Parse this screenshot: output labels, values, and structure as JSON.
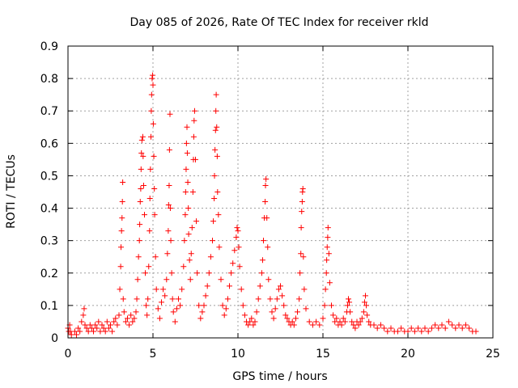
{
  "chart_data": {
    "type": "scatter",
    "title": "Day 085 of 2026, Rate Of TEC Index for receiver rkld",
    "xlabel": "GPS time / hours",
    "ylabel": "ROTI / TECUs",
    "xlim": [
      0,
      25
    ],
    "ylim": [
      0,
      0.9
    ],
    "xticks": [
      "0",
      "5",
      "10",
      "15",
      "20",
      "25"
    ],
    "yticks": [
      "0",
      "0.1",
      "0.2",
      "0.3",
      "0.4",
      "0.5",
      "0.6",
      "0.7",
      "0.8",
      "0.9"
    ],
    "grid": true,
    "marker": "plus",
    "color": "#ff0000",
    "series": [
      {
        "values": [
          [
            0.0,
            0.03
          ],
          [
            0.05,
            0.02
          ],
          [
            0.1,
            0.04
          ],
          [
            0.15,
            0.02
          ],
          [
            0.2,
            0.01
          ],
          [
            0.4,
            0.02
          ],
          [
            0.5,
            0.01
          ],
          [
            0.6,
            0.03
          ],
          [
            0.7,
            0.02
          ],
          [
            0.8,
            0.05
          ],
          [
            0.9,
            0.07
          ],
          [
            0.95,
            0.09
          ],
          [
            1.0,
            0.04
          ],
          [
            1.1,
            0.03
          ],
          [
            1.2,
            0.02
          ],
          [
            1.3,
            0.04
          ],
          [
            1.4,
            0.03
          ],
          [
            1.5,
            0.02
          ],
          [
            1.6,
            0.04
          ],
          [
            1.7,
            0.03
          ],
          [
            1.8,
            0.05
          ],
          [
            1.9,
            0.02
          ],
          [
            2.0,
            0.04
          ],
          [
            2.1,
            0.03
          ],
          [
            2.2,
            0.02
          ],
          [
            2.3,
            0.05
          ],
          [
            2.4,
            0.03
          ],
          [
            2.5,
            0.04
          ],
          [
            2.6,
            0.02
          ],
          [
            2.7,
            0.05
          ],
          [
            2.8,
            0.06
          ],
          [
            2.9,
            0.04
          ],
          [
            3.0,
            0.07
          ],
          [
            3.05,
            0.15
          ],
          [
            3.1,
            0.22
          ],
          [
            3.12,
            0.28
          ],
          [
            3.15,
            0.33
          ],
          [
            3.18,
            0.37
          ],
          [
            3.2,
            0.42
          ],
          [
            3.22,
            0.48
          ],
          [
            3.25,
            0.12
          ],
          [
            3.3,
            0.08
          ],
          [
            3.4,
            0.05
          ],
          [
            3.5,
            0.06
          ],
          [
            3.6,
            0.04
          ],
          [
            3.7,
            0.07
          ],
          [
            3.8,
            0.05
          ],
          [
            3.9,
            0.06
          ],
          [
            4.0,
            0.08
          ],
          [
            4.05,
            0.12
          ],
          [
            4.1,
            0.18
          ],
          [
            4.15,
            0.25
          ],
          [
            4.2,
            0.3
          ],
          [
            4.22,
            0.35
          ],
          [
            4.25,
            0.42
          ],
          [
            4.28,
            0.46
          ],
          [
            4.3,
            0.52
          ],
          [
            4.32,
            0.57
          ],
          [
            4.35,
            0.61
          ],
          [
            4.4,
            0.62
          ],
          [
            4.42,
            0.56
          ],
          [
            4.45,
            0.47
          ],
          [
            4.5,
            0.38
          ],
          [
            4.55,
            0.2
          ],
          [
            4.6,
            0.1
          ],
          [
            4.65,
            0.07
          ],
          [
            4.7,
            0.12
          ],
          [
            4.75,
            0.22
          ],
          [
            4.8,
            0.33
          ],
          [
            4.82,
            0.43
          ],
          [
            4.85,
            0.52
          ],
          [
            4.88,
            0.62
          ],
          [
            4.9,
            0.7
          ],
          [
            4.92,
            0.75
          ],
          [
            4.95,
            0.8
          ],
          [
            4.98,
            0.81
          ],
          [
            5.0,
            0.78
          ],
          [
            5.02,
            0.66
          ],
          [
            5.05,
            0.56
          ],
          [
            5.08,
            0.46
          ],
          [
            5.1,
            0.38
          ],
          [
            5.15,
            0.25
          ],
          [
            5.2,
            0.15
          ],
          [
            5.3,
            0.09
          ],
          [
            5.4,
            0.06
          ],
          [
            5.5,
            0.11
          ],
          [
            5.6,
            0.15
          ],
          [
            5.7,
            0.13
          ],
          [
            5.8,
            0.18
          ],
          [
            5.85,
            0.26
          ],
          [
            5.9,
            0.33
          ],
          [
            5.92,
            0.41
          ],
          [
            5.95,
            0.47
          ],
          [
            5.97,
            0.58
          ],
          [
            6.0,
            0.69
          ],
          [
            6.02,
            0.4
          ],
          [
            6.05,
            0.3
          ],
          [
            6.1,
            0.2
          ],
          [
            6.15,
            0.12
          ],
          [
            6.2,
            0.08
          ],
          [
            6.3,
            0.05
          ],
          [
            6.4,
            0.09
          ],
          [
            6.5,
            0.12
          ],
          [
            6.6,
            0.1
          ],
          [
            6.7,
            0.15
          ],
          [
            6.8,
            0.22
          ],
          [
            6.85,
            0.3
          ],
          [
            6.9,
            0.38
          ],
          [
            6.92,
            0.45
          ],
          [
            6.95,
            0.52
          ],
          [
            6.97,
            0.6
          ],
          [
            7.0,
            0.65
          ],
          [
            7.02,
            0.57
          ],
          [
            7.05,
            0.48
          ],
          [
            7.08,
            0.4
          ],
          [
            7.1,
            0.32
          ],
          [
            7.15,
            0.24
          ],
          [
            7.2,
            0.18
          ],
          [
            7.25,
            0.26
          ],
          [
            7.3,
            0.34
          ],
          [
            7.35,
            0.45
          ],
          [
            7.38,
            0.55
          ],
          [
            7.4,
            0.62
          ],
          [
            7.42,
            0.67
          ],
          [
            7.45,
            0.7
          ],
          [
            7.5,
            0.55
          ],
          [
            7.55,
            0.36
          ],
          [
            7.6,
            0.2
          ],
          [
            7.7,
            0.1
          ],
          [
            7.8,
            0.06
          ],
          [
            7.9,
            0.08
          ],
          [
            8.0,
            0.1
          ],
          [
            8.1,
            0.13
          ],
          [
            8.2,
            0.16
          ],
          [
            8.3,
            0.2
          ],
          [
            8.4,
            0.25
          ],
          [
            8.5,
            0.3
          ],
          [
            8.55,
            0.36
          ],
          [
            8.6,
            0.43
          ],
          [
            8.62,
            0.5
          ],
          [
            8.65,
            0.58
          ],
          [
            8.68,
            0.64
          ],
          [
            8.7,
            0.7
          ],
          [
            8.72,
            0.75
          ],
          [
            8.75,
            0.65
          ],
          [
            8.78,
            0.56
          ],
          [
            8.8,
            0.45
          ],
          [
            8.85,
            0.38
          ],
          [
            8.9,
            0.28
          ],
          [
            9.0,
            0.18
          ],
          [
            9.1,
            0.1
          ],
          [
            9.2,
            0.07
          ],
          [
            9.3,
            0.09
          ],
          [
            9.4,
            0.12
          ],
          [
            9.5,
            0.16
          ],
          [
            9.6,
            0.2
          ],
          [
            9.7,
            0.23
          ],
          [
            9.8,
            0.27
          ],
          [
            9.9,
            0.31
          ],
          [
            9.95,
            0.34
          ],
          [
            10.0,
            0.33
          ],
          [
            10.05,
            0.28
          ],
          [
            10.1,
            0.22
          ],
          [
            10.2,
            0.15
          ],
          [
            10.3,
            0.1
          ],
          [
            10.4,
            0.07
          ],
          [
            10.5,
            0.05
          ],
          [
            10.6,
            0.04
          ],
          [
            10.7,
            0.05
          ],
          [
            10.8,
            0.06
          ],
          [
            10.9,
            0.04
          ],
          [
            11.0,
            0.05
          ],
          [
            11.1,
            0.08
          ],
          [
            11.2,
            0.12
          ],
          [
            11.3,
            0.16
          ],
          [
            11.4,
            0.2
          ],
          [
            11.45,
            0.24
          ],
          [
            11.5,
            0.3
          ],
          [
            11.55,
            0.37
          ],
          [
            11.6,
            0.42
          ],
          [
            11.62,
            0.47
          ],
          [
            11.65,
            0.49
          ],
          [
            11.7,
            0.37
          ],
          [
            11.75,
            0.28
          ],
          [
            11.8,
            0.18
          ],
          [
            11.9,
            0.12
          ],
          [
            12.0,
            0.08
          ],
          [
            12.1,
            0.06
          ],
          [
            12.2,
            0.09
          ],
          [
            12.3,
            0.12
          ],
          [
            12.4,
            0.15
          ],
          [
            12.5,
            0.16
          ],
          [
            12.6,
            0.13
          ],
          [
            12.7,
            0.1
          ],
          [
            12.8,
            0.07
          ],
          [
            12.9,
            0.06
          ],
          [
            13.0,
            0.05
          ],
          [
            13.1,
            0.04
          ],
          [
            13.2,
            0.05
          ],
          [
            13.3,
            0.04
          ],
          [
            13.4,
            0.06
          ],
          [
            13.5,
            0.08
          ],
          [
            13.6,
            0.12
          ],
          [
            13.65,
            0.2
          ],
          [
            13.7,
            0.26
          ],
          [
            13.72,
            0.34
          ],
          [
            13.75,
            0.39
          ],
          [
            13.78,
            0.42
          ],
          [
            13.8,
            0.45
          ],
          [
            13.82,
            0.46
          ],
          [
            13.85,
            0.25
          ],
          [
            13.9,
            0.15
          ],
          [
            14.0,
            0.09
          ],
          [
            14.2,
            0.05
          ],
          [
            14.4,
            0.04
          ],
          [
            14.6,
            0.05
          ],
          [
            14.8,
            0.04
          ],
          [
            15.0,
            0.06
          ],
          [
            15.1,
            0.1
          ],
          [
            15.15,
            0.15
          ],
          [
            15.2,
            0.2
          ],
          [
            15.22,
            0.24
          ],
          [
            15.25,
            0.28
          ],
          [
            15.28,
            0.31
          ],
          [
            15.3,
            0.34
          ],
          [
            15.35,
            0.26
          ],
          [
            15.4,
            0.17
          ],
          [
            15.5,
            0.1
          ],
          [
            15.6,
            0.07
          ],
          [
            15.7,
            0.05
          ],
          [
            15.8,
            0.06
          ],
          [
            15.9,
            0.04
          ],
          [
            16.0,
            0.05
          ],
          [
            16.1,
            0.04
          ],
          [
            16.2,
            0.06
          ],
          [
            16.3,
            0.05
          ],
          [
            16.4,
            0.08
          ],
          [
            16.45,
            0.1
          ],
          [
            16.5,
            0.12
          ],
          [
            16.55,
            0.11
          ],
          [
            16.6,
            0.08
          ],
          [
            16.7,
            0.05
          ],
          [
            16.8,
            0.04
          ],
          [
            16.9,
            0.03
          ],
          [
            17.0,
            0.05
          ],
          [
            17.1,
            0.04
          ],
          [
            17.2,
            0.05
          ],
          [
            17.3,
            0.06
          ],
          [
            17.4,
            0.08
          ],
          [
            17.45,
            0.11
          ],
          [
            17.5,
            0.13
          ],
          [
            17.55,
            0.1
          ],
          [
            17.6,
            0.07
          ],
          [
            17.7,
            0.05
          ],
          [
            17.8,
            0.04
          ],
          [
            18.0,
            0.04
          ],
          [
            18.2,
            0.03
          ],
          [
            18.4,
            0.04
          ],
          [
            18.6,
            0.03
          ],
          [
            18.8,
            0.02
          ],
          [
            19.0,
            0.03
          ],
          [
            19.2,
            0.02
          ],
          [
            19.4,
            0.02
          ],
          [
            19.6,
            0.03
          ],
          [
            19.8,
            0.02
          ],
          [
            20.0,
            0.02
          ],
          [
            20.2,
            0.03
          ],
          [
            20.4,
            0.02
          ],
          [
            20.6,
            0.03
          ],
          [
            20.8,
            0.02
          ],
          [
            21.0,
            0.03
          ],
          [
            21.2,
            0.02
          ],
          [
            21.4,
            0.03
          ],
          [
            21.6,
            0.04
          ],
          [
            21.8,
            0.03
          ],
          [
            22.0,
            0.04
          ],
          [
            22.2,
            0.03
          ],
          [
            22.4,
            0.05
          ],
          [
            22.6,
            0.04
          ],
          [
            22.8,
            0.03
          ],
          [
            23.0,
            0.04
          ],
          [
            23.2,
            0.03
          ],
          [
            23.4,
            0.04
          ],
          [
            23.6,
            0.03
          ],
          [
            23.8,
            0.02
          ],
          [
            24.0,
            0.02
          ]
        ]
      }
    ]
  }
}
